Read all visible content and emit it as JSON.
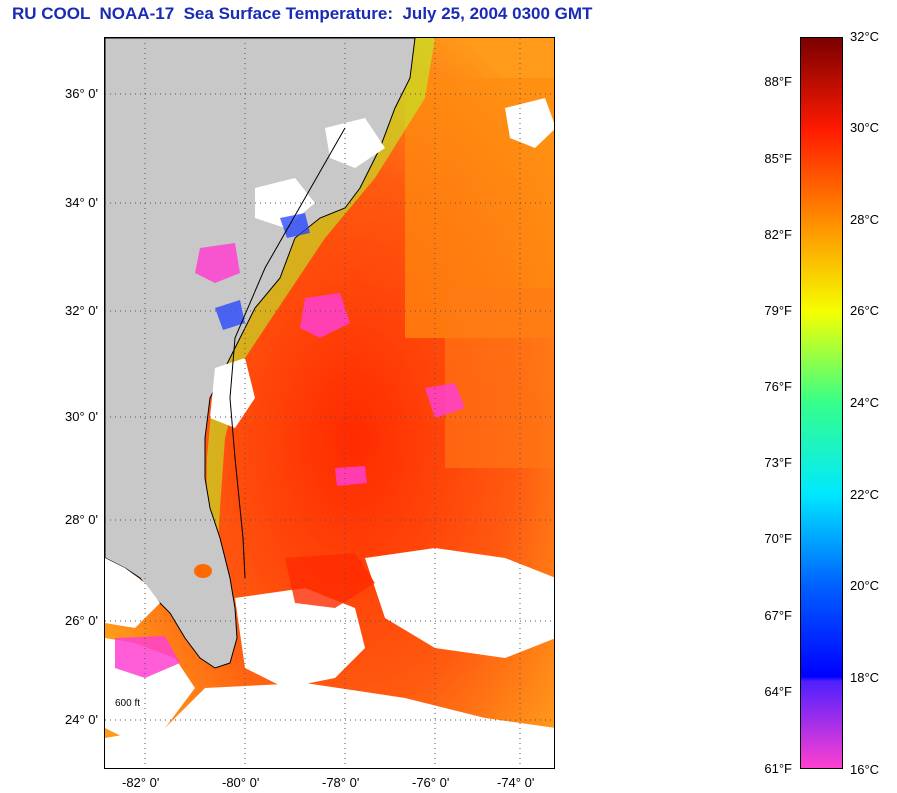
{
  "title": "RU COOL  NOAA-17  Sea Surface Temperature:  July 25, 2004 0300 GMT",
  "map": {
    "lat_labels": [
      "36° 0'",
      "34° 0'",
      "32° 0'",
      "30° 0'",
      "28° 0'",
      "26° 0'",
      "24° 0'"
    ],
    "lon_labels": [
      "-82° 0'",
      "-80° 0'",
      "-78° 0'",
      "-76° 0'",
      "-74° 0'"
    ],
    "land_color": "#c8c8c8",
    "cloud_color": "#ffffff",
    "depth_contour_label": "600 ft"
  },
  "colorbar": {
    "fahrenheit": [
      "88°F",
      "85°F",
      "82°F",
      "79°F",
      "76°F",
      "73°F",
      "70°F",
      "67°F",
      "64°F",
      "61°F"
    ],
    "celsius": [
      "32°C",
      "30°C",
      "28°C",
      "26°C",
      "24°C",
      "22°C",
      "20°C",
      "18°C",
      "16°C"
    ],
    "gradient_stops": [
      {
        "c": 32,
        "color": "#7a0000"
      },
      {
        "c": 30,
        "color": "#ff1a00"
      },
      {
        "c": 28,
        "color": "#ff8c00"
      },
      {
        "c": 26,
        "color": "#f5ff00"
      },
      {
        "c": 24,
        "color": "#36ff8a"
      },
      {
        "c": 22,
        "color": "#00e8ff"
      },
      {
        "c": 20,
        "color": "#0060ff"
      },
      {
        "c": 18,
        "color": "#0000ff"
      },
      {
        "c": 17.9,
        "color": "#5020ff"
      },
      {
        "c": 16,
        "color": "#ff40d0"
      }
    ]
  }
}
